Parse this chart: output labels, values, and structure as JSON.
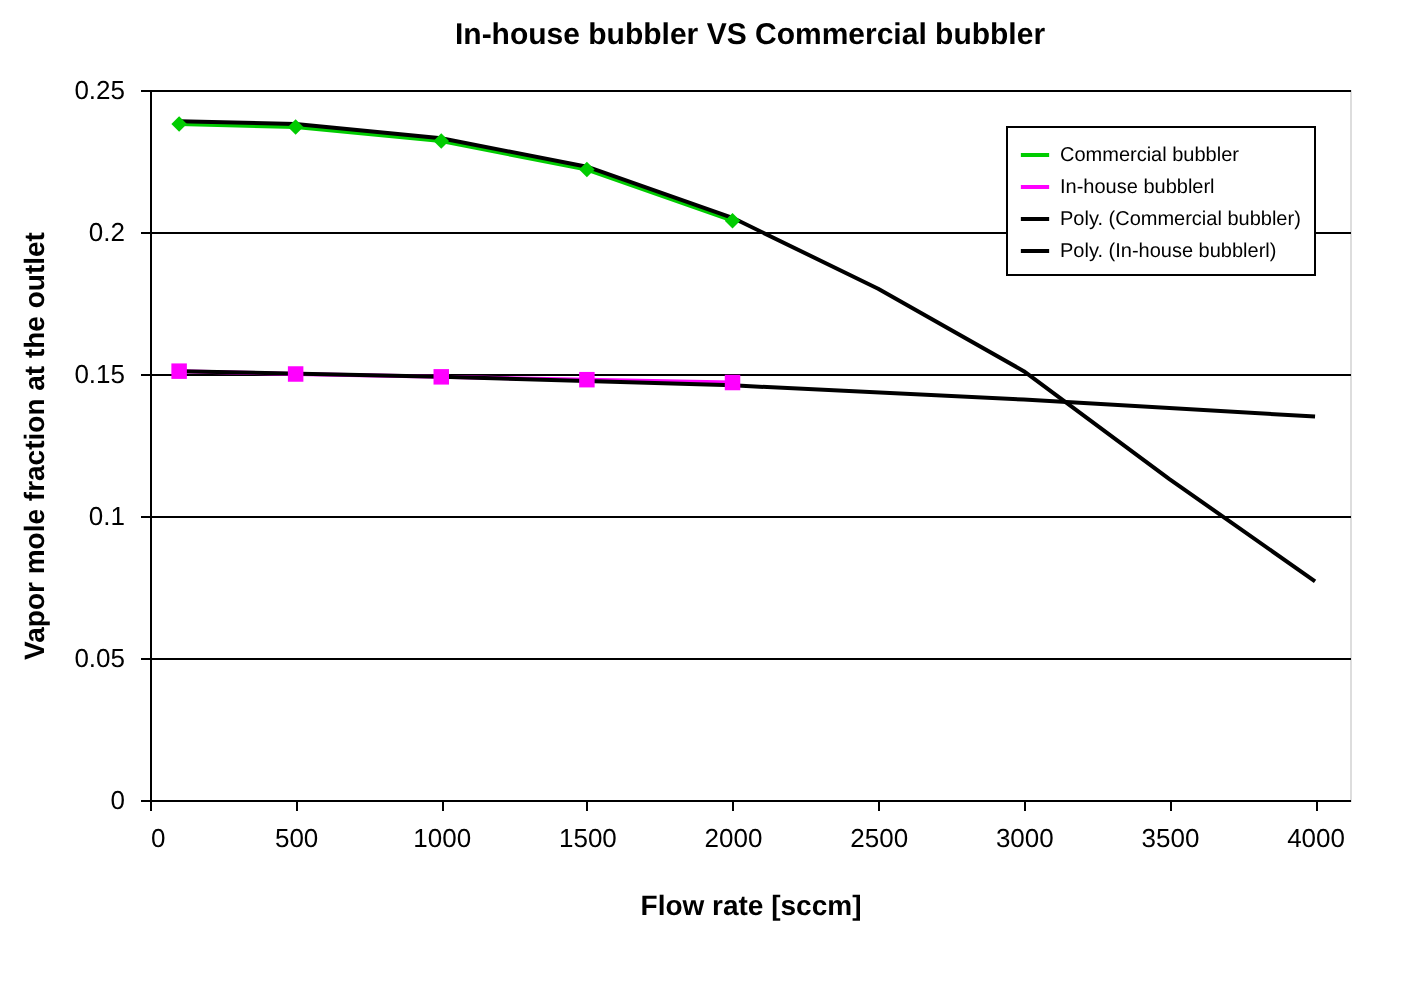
{
  "chart_data": {
    "type": "line",
    "title": "In-house bubbler VS Commercial bubbler",
    "xlabel": "Flow rate [sccm]",
    "ylabel": "Vapor mole fraction at the outlet",
    "series": [
      {
        "name": "Commercial bubbler",
        "color": "#00cc00",
        "marker": "diamond",
        "x": [
          100,
          500,
          1000,
          1500,
          2000
        ],
        "values": [
          0.238,
          0.237,
          0.232,
          0.222,
          0.204
        ]
      },
      {
        "name": "In-house bubblerl",
        "color": "#ff00ff",
        "marker": "square",
        "x": [
          100,
          500,
          1000,
          1500,
          2000
        ],
        "values": [
          0.151,
          0.15,
          0.149,
          0.148,
          0.147
        ]
      },
      {
        "name": "Poly. (Commercial bubbler)",
        "color": "#000000",
        "x": [
          100,
          500,
          1000,
          1500,
          2000,
          2500,
          3000,
          3500,
          4000
        ],
        "values": [
          0.239,
          0.238,
          0.233,
          0.223,
          0.205,
          0.18,
          0.151,
          0.113,
          0.077
        ]
      },
      {
        "name": "Poly. (In-house bubblerl)",
        "color": "#000000",
        "x": [
          100,
          1000,
          2000,
          3000,
          4000
        ],
        "values": [
          0.151,
          0.149,
          0.146,
          0.141,
          0.135
        ]
      }
    ],
    "xlim": [
      0,
      4120
    ],
    "xticks": [
      0,
      500,
      1000,
      1500,
      2000,
      2500,
      3000,
      3500,
      4000
    ],
    "ylim": [
      0,
      0.25
    ],
    "yticks": [
      0,
      0.05,
      0.1,
      0.15,
      0.2,
      0.25
    ],
    "grid": "y",
    "legend": "top right",
    "line_style": "solid"
  }
}
